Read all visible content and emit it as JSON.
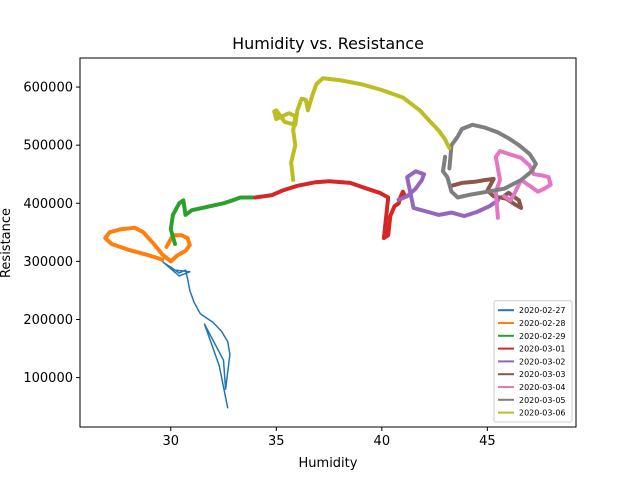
{
  "chart_data": {
    "type": "line",
    "title": "Humidity vs. Resistance",
    "xlabel": "Humidity",
    "ylabel": "Resistance",
    "xlim": [
      25.7,
      49.2
    ],
    "ylim": [
      15000,
      650000
    ],
    "xticks": [
      30,
      35,
      40,
      45
    ],
    "yticks": [
      100000,
      200000,
      300000,
      400000,
      500000,
      600000
    ],
    "grid": false,
    "legend_position": "lower-right",
    "series": [
      {
        "name": "2020-02-27",
        "color": "#1f77b4",
        "width": 1.5,
        "x": [
          32.7,
          32.3,
          31.6,
          32.5,
          32.6,
          32.8,
          32.7,
          32.4,
          32.0,
          31.4,
          31.1,
          30.9,
          30.8,
          30.7,
          30.4,
          30.0,
          29.7,
          30.2,
          30.9,
          30.4,
          29.6
        ],
        "y": [
          48000,
          120000,
          192000,
          130000,
          80000,
          140000,
          162000,
          180000,
          195000,
          210000,
          230000,
          250000,
          270000,
          285000,
          280000,
          290000,
          297000,
          285000,
          282000,
          275000,
          300000
        ]
      },
      {
        "name": "2020-02-28",
        "color": "#ff7f0e",
        "width": 4,
        "x": [
          29.6,
          29.0,
          28.0,
          27.2,
          26.9,
          27.1,
          27.6,
          28.3,
          28.7,
          29.2,
          29.6,
          30.0,
          30.3,
          30.7,
          30.9,
          30.8,
          30.5,
          30.1,
          29.8
        ],
        "y": [
          303000,
          310000,
          320000,
          330000,
          340000,
          350000,
          355000,
          358000,
          350000,
          330000,
          312000,
          300000,
          310000,
          318000,
          328000,
          340000,
          345000,
          345000,
          325000
        ]
      },
      {
        "name": "2020-02-29",
        "color": "#2ca02c",
        "width": 4,
        "x": [
          30.2,
          30.0,
          30.1,
          30.4,
          30.6,
          30.7,
          31.0,
          31.5,
          32.0,
          32.5,
          33.0,
          33.3,
          33.9
        ],
        "y": [
          330000,
          355000,
          380000,
          400000,
          405000,
          380000,
          388000,
          392000,
          396000,
          400000,
          406000,
          410000,
          410000
        ]
      },
      {
        "name": "2020-03-01",
        "color": "#d62728",
        "width": 4,
        "x": [
          34.0,
          34.8,
          35.3,
          36.0,
          36.8,
          37.5,
          38.5,
          39.3,
          39.9,
          40.3,
          40.1,
          40.3,
          40.4,
          40.6,
          40.8,
          40.9,
          41.0,
          41.1,
          40.8
        ],
        "y": [
          410000,
          414000,
          422000,
          430000,
          436000,
          438000,
          435000,
          425000,
          418000,
          410000,
          340000,
          345000,
          378000,
          395000,
          400000,
          412000,
          420000,
          412000,
          406000
        ]
      },
      {
        "name": "2020-03-02",
        "color": "#9467bd",
        "width": 4,
        "x": [
          40.8,
          41.2,
          41.6,
          41.9,
          42.0,
          41.6,
          41.2,
          41.5,
          42.2,
          42.7,
          43.3,
          43.9,
          44.5,
          45.1,
          45.5
        ],
        "y": [
          406000,
          412000,
          425000,
          440000,
          450000,
          455000,
          445000,
          392000,
          385000,
          380000,
          384000,
          378000,
          385000,
          395000,
          405000
        ]
      },
      {
        "name": "2020-03-03",
        "color": "#8c564b",
        "width": 4,
        "x": [
          43.3,
          43.8,
          44.4,
          44.9,
          45.3,
          45.0,
          45.3,
          45.9,
          46.3,
          46.6,
          46.5,
          46.0,
          45.7
        ],
        "y": [
          430000,
          435000,
          437000,
          440000,
          442000,
          422000,
          412000,
          408000,
          398000,
          392000,
          405000,
          418000,
          410000
        ]
      },
      {
        "name": "2020-03-04",
        "color": "#e377c2",
        "width": 4,
        "x": [
          45.5,
          45.4,
          45.6,
          45.4,
          45.6,
          46.0,
          46.6,
          47.0,
          47.2,
          47.6,
          47.9,
          48.0,
          47.7,
          47.4,
          47.0,
          46.6,
          46.3,
          46.1,
          45.8
        ],
        "y": [
          375000,
          420000,
          440000,
          480000,
          490000,
          485000,
          478000,
          465000,
          450000,
          448000,
          445000,
          432000,
          425000,
          420000,
          430000,
          440000,
          418000,
          405000,
          412000
        ]
      },
      {
        "name": "2020-03-05",
        "color": "#7f7f7f",
        "width": 4,
        "x": [
          43.0,
          42.9,
          43.1,
          43.3,
          43.6,
          44.2,
          45.0,
          45.8,
          46.6,
          47.1,
          47.3,
          47.0,
          46.5,
          46.0,
          45.5,
          44.9,
          44.3,
          43.8,
          43.6,
          43.3,
          43.2
        ],
        "y": [
          480000,
          455000,
          445000,
          420000,
          410000,
          415000,
          420000,
          425000,
          440000,
          455000,
          468000,
          485000,
          500000,
          512000,
          522000,
          530000,
          535000,
          528000,
          515000,
          500000,
          460000
        ]
      },
      {
        "name": "2020-03-06",
        "color": "#bcbd22",
        "width": 4,
        "x": [
          35.8,
          35.7,
          35.9,
          35.8,
          35.9,
          35.6,
          35.3,
          35.0,
          34.9,
          35.0,
          35.4,
          35.9,
          36.0,
          36.2,
          36.4,
          36.5,
          36.7,
          36.9,
          37.2,
          38.0,
          39.0,
          40.0,
          41.0,
          41.8,
          42.3,
          42.7,
          43.0,
          43.2
        ],
        "y": [
          440000,
          470000,
          500000,
          525000,
          550000,
          555000,
          550000,
          545000,
          558000,
          560000,
          540000,
          535000,
          560000,
          580000,
          578000,
          560000,
          585000,
          605000,
          615000,
          612000,
          605000,
          595000,
          582000,
          560000,
          540000,
          525000,
          510000,
          495000
        ]
      }
    ]
  }
}
